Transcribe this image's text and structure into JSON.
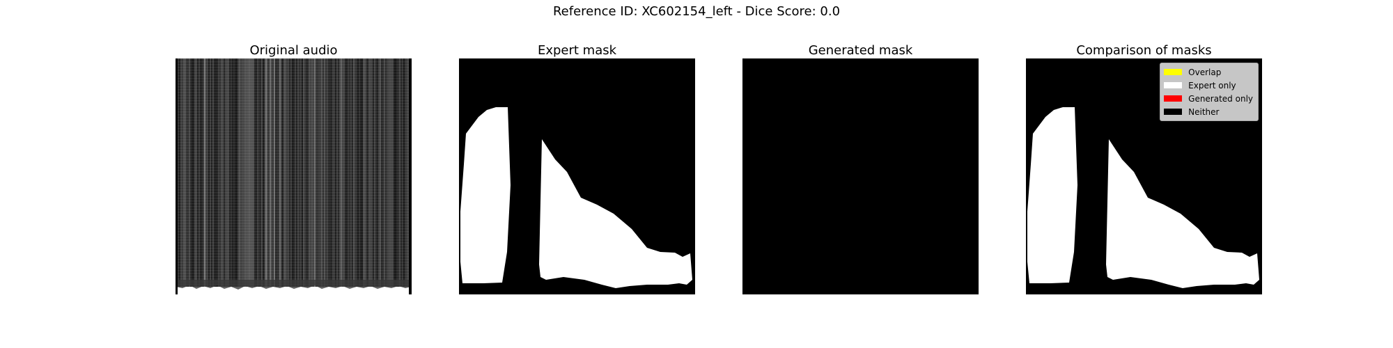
{
  "suptitle": "Reference ID: XC602154_left - Dice Score: 0.0",
  "panels": [
    {
      "title": "Original audio"
    },
    {
      "title": "Expert mask"
    },
    {
      "title": "Generated mask"
    },
    {
      "title": "Comparison of masks"
    }
  ],
  "legend": [
    {
      "label": "Overlap",
      "color": "#ffff00"
    },
    {
      "label": "Expert only",
      "color": "#ffffff"
    },
    {
      "label": "Generated only",
      "color": "#ff0000"
    },
    {
      "label": "Neither",
      "color": "#000000"
    }
  ],
  "colors": {
    "background": "#000000",
    "expert_region": "#ffffff"
  }
}
